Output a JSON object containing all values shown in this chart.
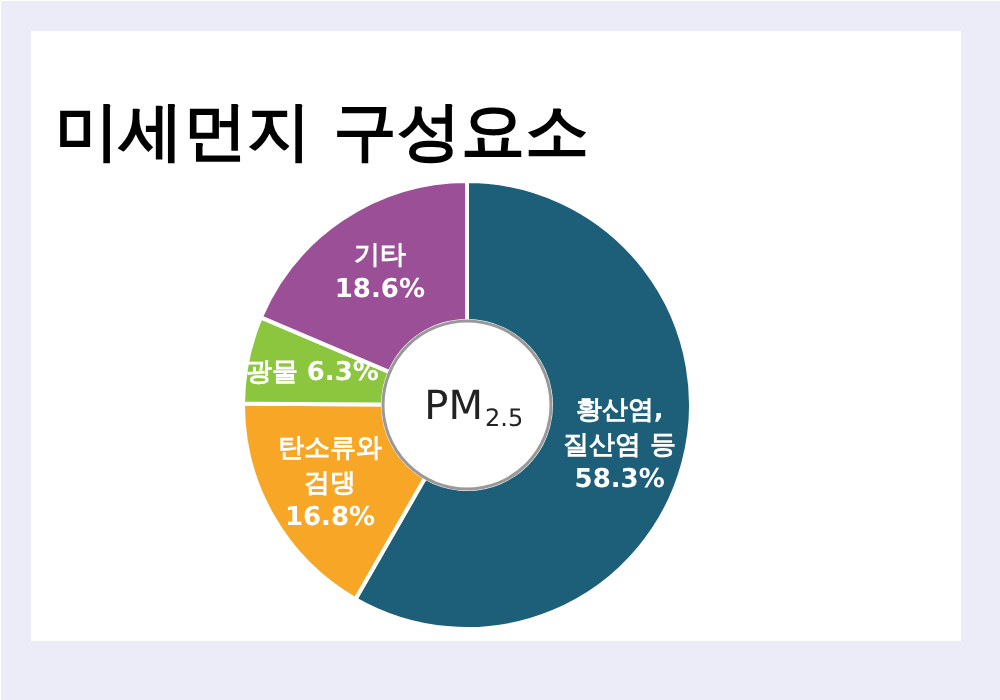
{
  "chart_data": {
    "type": "donut",
    "title": "미세먼지 구성요소",
    "categories": [
      "황산염,\n질산염 등",
      "탄소류와\n검댕",
      "광물",
      "기타"
    ],
    "values": [
      58.3,
      16.8,
      6.3,
      18.6
    ],
    "colors": [
      "#1d5f78",
      "#f7a625",
      "#8cc63f",
      "#9b4f97"
    ],
    "value_labels": [
      "58.3%",
      "16.8%",
      "6.3%",
      "18.6%"
    ],
    "annotations": [
      "PM$_{2.5}$"
    ]
  }
}
